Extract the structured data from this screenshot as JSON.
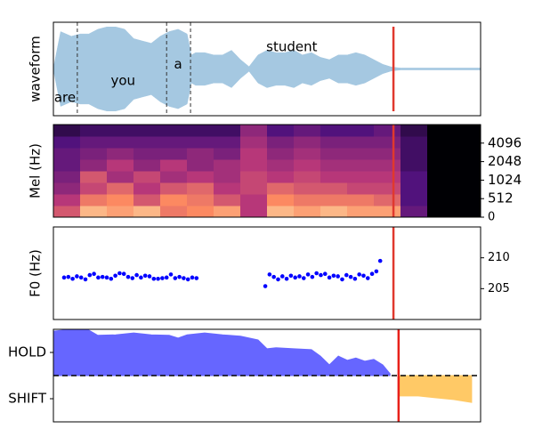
{
  "chart_data": [
    {
      "type": "waveform",
      "ylabel": "waveform",
      "color": "#a5c8e1",
      "xlim": [
        0,
        100
      ],
      "ylim": [
        -1,
        1
      ],
      "x": [
        0,
        1.7,
        4.2,
        6.3,
        8.3,
        10.4,
        12.5,
        14.6,
        16.7,
        18.8,
        20.8,
        22.9,
        25,
        27.1,
        29.2,
        31.3,
        32.3,
        33.3,
        35.4,
        37.5,
        39.6,
        41.7,
        43.8,
        45.8,
        47.9,
        50,
        52.1,
        54.2,
        56.3,
        58.3,
        60.4,
        62.5,
        64.6,
        66.7,
        68.8,
        70.8,
        72.9,
        75,
        77.1,
        79.2,
        81.3,
        100
      ],
      "values": [
        0.02,
        0.8,
        0.7,
        0.75,
        0.75,
        0.85,
        0.9,
        0.9,
        0.85,
        0.65,
        0.6,
        0.55,
        0.7,
        0.8,
        0.85,
        0.75,
        0.3,
        0.35,
        0.35,
        0.3,
        0.3,
        0.4,
        0.2,
        0.05,
        0.3,
        0.4,
        0.35,
        0.35,
        0.4,
        0.3,
        0.35,
        0.25,
        0.2,
        0.3,
        0.3,
        0.35,
        0.3,
        0.2,
        0.1,
        0.04,
        0.02,
        0.02
      ],
      "words": [
        "are",
        "you",
        "a",
        "student"
      ],
      "boundaries": [
        5.6,
        26.5,
        32.1
      ],
      "cursor": 79.6,
      "cursor_color": "#e0392e"
    },
    {
      "type": "heatmap",
      "ylabel": "Mel (Hz)",
      "xlim": [
        0,
        100
      ],
      "ylim": [
        0,
        100
      ],
      "ytick_side": "right",
      "yticks": [
        0,
        {
          "value": 20,
          "label": "512"
        },
        {
          "value": 40,
          "label": "1024"
        },
        {
          "value": 60,
          "label": "2048"
        },
        {
          "value": 80,
          "label": "4096"
        }
      ],
      "z": [
        [
          0.6,
          0.85,
          0.8,
          0.85,
          0.7,
          0.75,
          0.8,
          0.5,
          0.85,
          0.8,
          0.85,
          0.8,
          0.8,
          0.3,
          0,
          0
        ],
        [
          0.5,
          0.7,
          0.75,
          0.6,
          0.75,
          0.7,
          0.6,
          0.5,
          0.75,
          0.7,
          0.7,
          0.7,
          0.65,
          0.25,
          0,
          0
        ],
        [
          0.4,
          0.55,
          0.65,
          0.5,
          0.6,
          0.65,
          0.5,
          0.55,
          0.65,
          0.6,
          0.6,
          0.55,
          0.55,
          0.25,
          0,
          0
        ],
        [
          0.35,
          0.6,
          0.45,
          0.55,
          0.45,
          0.5,
          0.45,
          0.55,
          0.5,
          0.55,
          0.5,
          0.5,
          0.5,
          0.25,
          0,
          0
        ],
        [
          0.3,
          0.4,
          0.5,
          0.4,
          0.5,
          0.4,
          0.45,
          0.5,
          0.45,
          0.5,
          0.45,
          0.45,
          0.45,
          0.2,
          0,
          0
        ],
        [
          0.3,
          0.35,
          0.4,
          0.35,
          0.35,
          0.4,
          0.35,
          0.5,
          0.4,
          0.45,
          0.4,
          0.4,
          0.4,
          0.2,
          0,
          0
        ],
        [
          0.25,
          0.3,
          0.3,
          0.3,
          0.3,
          0.3,
          0.3,
          0.45,
          0.35,
          0.4,
          0.35,
          0.35,
          0.35,
          0.2,
          0,
          0
        ],
        [
          0.15,
          0.2,
          0.2,
          0.2,
          0.2,
          0.2,
          0.2,
          0.4,
          0.25,
          0.3,
          0.25,
          0.25,
          0.3,
          0.15,
          0,
          0
        ]
      ],
      "cursor": 79.6,
      "cursor_color": "#e0392e"
    },
    {
      "type": "scatter",
      "ylabel": "F0 (Hz)",
      "xlim": [
        0,
        100
      ],
      "ylim": [
        200,
        215
      ],
      "yticks": [
        205,
        210
      ],
      "ytick_side": "right",
      "color": "#0000ff",
      "x": [
        2.5,
        3.5,
        4.5,
        5.5,
        6.5,
        7.5,
        8.5,
        9.5,
        10.5,
        11.5,
        12.5,
        13.5,
        14.5,
        15.5,
        16.5,
        17.5,
        18.5,
        19.5,
        20.5,
        21.5,
        22.5,
        23.5,
        24.5,
        25.5,
        26.5,
        27.5,
        28.5,
        29.5,
        30.5,
        31.5,
        32.5,
        33.5,
        49.6,
        50.6,
        51.6,
        52.6,
        53.6,
        54.6,
        55.6,
        56.6,
        57.6,
        58.6,
        59.6,
        60.6,
        61.6,
        62.6,
        63.6,
        64.6,
        65.6,
        66.6,
        67.6,
        68.6,
        69.6,
        70.6,
        71.6,
        72.6,
        73.6,
        74.6,
        75.6,
        76.5
      ],
      "values": [
        206.8,
        206.9,
        206.6,
        207,
        206.8,
        206.5,
        207.2,
        207.4,
        206.8,
        206.9,
        206.8,
        206.6,
        207.1,
        207.5,
        207.4,
        206.9,
        206.7,
        207.2,
        206.8,
        207.1,
        207,
        206.6,
        206.6,
        206.7,
        206.8,
        207.3,
        206.7,
        206.9,
        206.7,
        206.5,
        206.8,
        206.7,
        205.4,
        207.3,
        206.9,
        206.5,
        207,
        206.6,
        207.1,
        206.8,
        207,
        206.7,
        207.3,
        206.9,
        207.5,
        207.2,
        207.4,
        206.8,
        207.1,
        207,
        206.5,
        207.2,
        206.9,
        206.6,
        207.3,
        207.1,
        206.7,
        207.4,
        207.8,
        209.5
      ],
      "cursor": 79.6,
      "cursor_color": "#e0392e"
    },
    {
      "type": "area",
      "xlim": [
        0,
        100
      ],
      "ylim": [
        -1,
        1
      ],
      "yticks": [
        {
          "value": 0.5,
          "label": "HOLD"
        },
        {
          "value": -0.5,
          "label": "SHIFT"
        }
      ],
      "ytick_side": "left",
      "hline": 0,
      "series": [
        {
          "color": "#6666ff",
          "x": [
            0,
            4.2,
            8.3,
            10.4,
            14.6,
            18.8,
            22.9,
            27.1,
            29.2,
            31.3,
            35.4,
            39.6,
            43.8,
            47.9,
            50,
            52.1,
            56.3,
            60.4,
            62.5,
            64.6,
            66.7,
            68.8,
            70.8,
            72.9,
            75,
            77.1,
            78.8
          ],
          "values": [
            0.96,
            1,
            0.98,
            0.87,
            0.88,
            0.92,
            0.88,
            0.87,
            0.81,
            0.88,
            0.92,
            0.88,
            0.85,
            0.77,
            0.58,
            0.6,
            0.58,
            0.56,
            0.42,
            0.23,
            0.42,
            0.33,
            0.38,
            0.31,
            0.35,
            0.23,
            0.04
          ]
        },
        {
          "color": "#ffc966",
          "x": [
            80.8,
            85.4,
            89.6,
            93.8,
            97.9
          ],
          "values": [
            -0.44,
            -0.44,
            -0.48,
            -0.52,
            -0.58
          ]
        }
      ],
      "cursor": 80.8,
      "cursor_color": "#e8201a"
    }
  ]
}
